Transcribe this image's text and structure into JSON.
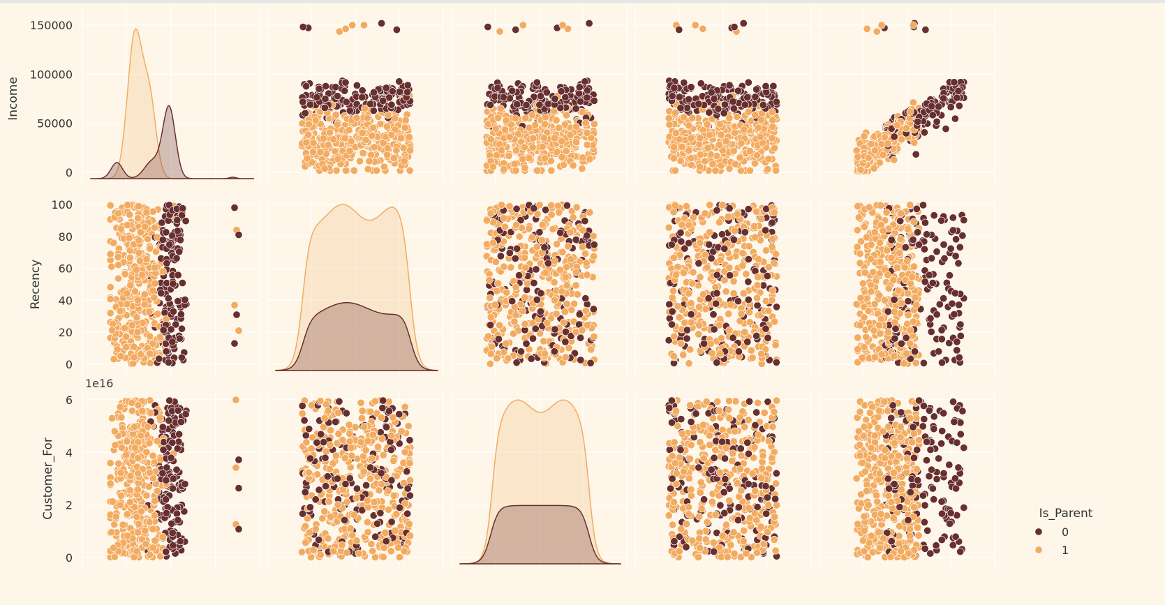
{
  "chart_data": {
    "type": "scatter",
    "kind": "pairplot",
    "variables": [
      "Income",
      "Recency",
      "Customer_For"
    ],
    "row_labels": [
      "Income",
      "Recency",
      "Customer_For"
    ],
    "row_ticks": [
      [
        "0",
        "50000",
        "100000",
        "150000"
      ],
      [
        "0",
        "20",
        "40",
        "60",
        "80",
        "100"
      ],
      [
        "0",
        "2",
        "4",
        "6"
      ]
    ],
    "row_ranges": [
      [
        0,
        160000
      ],
      [
        0,
        100
      ],
      [
        0,
        6
      ]
    ],
    "offset_label": "1e16",
    "grid": true,
    "legend": {
      "title": "Is_Parent",
      "placement": "center-right",
      "entries": [
        {
          "label": "0",
          "color": "#682f2f"
        },
        {
          "label": "1",
          "color": "#f3ab60"
        }
      ]
    },
    "hue": "Is_Parent",
    "series": [
      {
        "name": "0",
        "color": "#682f2f",
        "income_mode": 79000,
        "income_share": 0.28
      },
      {
        "name": "1",
        "color": "#f3ab60",
        "income_mode": 35000,
        "income_share": 0.72
      }
    ],
    "outliers_income": [
      157000,
      160000,
      162000,
      153000,
      155000,
      156000,
      158000,
      160000
    ],
    "diagonal": "kde",
    "colors": {
      "background": "#fdf6e9",
      "grid": "#ffffff",
      "dark": "#682f2f",
      "light": "#f3ab60"
    }
  }
}
